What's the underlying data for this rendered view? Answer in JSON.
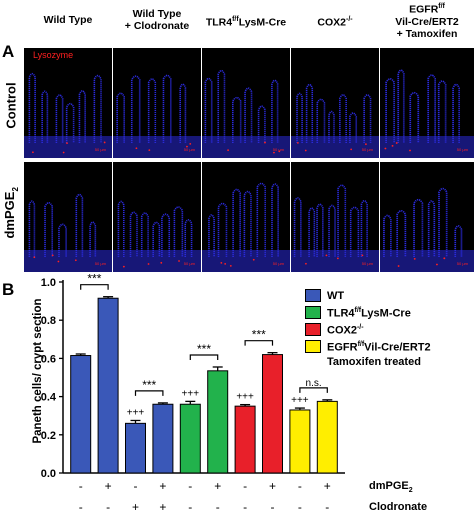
{
  "panelA": {
    "letter": "A",
    "columns": [
      {
        "line1": "Wild Type",
        "line2": "",
        "line3": ""
      },
      {
        "line1": "Wild Type",
        "line2": "+ Clodronate",
        "line3": ""
      },
      {
        "line1": "TLR4",
        "sup": "f/f",
        "line1b": "LysM-Cre",
        "line2": "",
        "line3": ""
      },
      {
        "line1": "COX2",
        "sup": "-/-",
        "line2": "",
        "line3": ""
      },
      {
        "line1": "EGFR",
        "sup": "f/f",
        "line2": "Vil-Cre/ERT2",
        "line3": "+ Tamoxifen"
      }
    ],
    "rows": [
      {
        "label": "Control"
      },
      {
        "label": "dmPGE",
        "sub": "2"
      }
    ],
    "stain_label": "Lysozyme",
    "scale_label": "50 µm",
    "colors": {
      "nuclei": "#2a2ad8",
      "stain": "#ff2020",
      "background": "#000000"
    }
  },
  "panelB": {
    "letter": "B",
    "ylabel": "Paneth cells/ crypt section",
    "legend": [
      {
        "label": "WT",
        "color": "#3a58b8"
      },
      {
        "label": "TLR4",
        "sup": "f/f",
        "after": "LysM-Cre",
        "color": "#22b24c"
      },
      {
        "label": "COX2",
        "sup": "-/-",
        "after": "",
        "color": "#e8202a"
      },
      {
        "label": "EGFR",
        "sup": "f/f",
        "after": "Vil-Cre/ERT2",
        "line2": "Tamoxifen treated",
        "color": "#ffee00"
      }
    ],
    "row_labels": {
      "dmpge": "dmPGE",
      "dmpge_sub": "2",
      "clodronate": "Clodronate"
    },
    "signs": {
      "dmpge": [
        "-",
        "+",
        "-",
        "+",
        "-",
        "+",
        "-",
        "+",
        "-",
        "+"
      ],
      "clodronate": [
        "-",
        "-",
        "+",
        "+",
        "-",
        "-",
        "-",
        "-",
        "-",
        "-"
      ]
    },
    "brackets": [
      {
        "from": 0,
        "to": 1,
        "label": "***"
      },
      {
        "from": 2,
        "to": 3,
        "label": "***"
      },
      {
        "from": 4,
        "to": 5,
        "label": "***"
      },
      {
        "from": 6,
        "to": 7,
        "label": "***"
      },
      {
        "from": 8,
        "to": 9,
        "label": "n.s."
      }
    ],
    "plus_marks": [
      {
        "bar": 2,
        "label": "+++"
      },
      {
        "bar": 4,
        "label": "+++"
      },
      {
        "bar": 6,
        "label": "+++"
      },
      {
        "bar": 8,
        "label": "+++"
      }
    ]
  },
  "chart_data": {
    "type": "bar",
    "ylabel": "Paneth cells/ crypt section",
    "xlabel": "",
    "ylim": [
      0,
      1.0
    ],
    "yticks": [
      "0.0",
      "0.2",
      "0.4",
      "0.6",
      "0.8",
      "1.0"
    ],
    "values": [
      0.615,
      0.915,
      0.26,
      0.36,
      0.36,
      0.535,
      0.35,
      0.62,
      0.33,
      0.375
    ],
    "errors": [
      0.008,
      0.008,
      0.015,
      0.007,
      0.015,
      0.02,
      0.008,
      0.01,
      0.01,
      0.008
    ],
    "bar_colors": [
      "#3a58b8",
      "#3a58b8",
      "#3a58b8",
      "#3a58b8",
      "#22b24c",
      "#22b24c",
      "#e8202a",
      "#e8202a",
      "#ffee00",
      "#ffee00"
    ],
    "legend_position": "top-right"
  }
}
